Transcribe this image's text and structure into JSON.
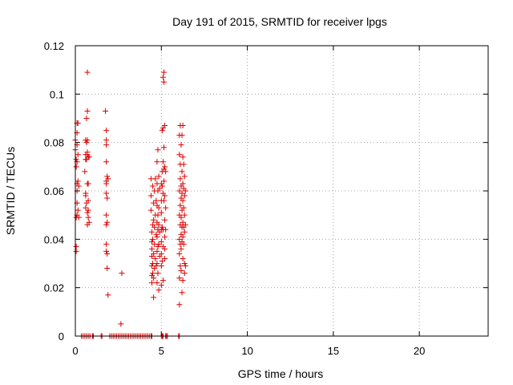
{
  "chart_data": {
    "type": "scatter",
    "title": "Day 191 of 2015, SRMTID for receiver lpgs",
    "xlabel": "GPS time / hours",
    "ylabel": "SRMTID / TECUs",
    "xlim": [
      0,
      24
    ],
    "ylim": [
      0,
      0.12
    ],
    "xticks": [
      0,
      5,
      10,
      15,
      20
    ],
    "yticks": [
      0,
      0.02,
      0.04,
      0.06,
      0.08,
      0.1,
      0.12
    ],
    "xtick_labels": [
      "0",
      "5",
      "10",
      "15",
      "20"
    ],
    "ytick_labels": [
      "0",
      "0.02",
      "0.04",
      "0.06",
      "0.08",
      "0.1",
      "0.12"
    ],
    "grid": true,
    "grid_style": "dotted",
    "marker": "plus",
    "marker_color": "#dd0000",
    "series": [
      {
        "points": [
          [
            0.0,
            0.081
          ],
          [
            0.0,
            0.077
          ],
          [
            0.05,
            0.073
          ],
          [
            0.05,
            0.07
          ],
          [
            0.05,
            0.049
          ],
          [
            0.05,
            0.037
          ],
          [
            0.05,
            0.035
          ],
          [
            0.1,
            0.088
          ],
          [
            0.1,
            0.084
          ],
          [
            0.1,
            0.079
          ],
          [
            0.1,
            0.072
          ],
          [
            0.1,
            0.063
          ],
          [
            0.1,
            0.06
          ],
          [
            0.1,
            0.055
          ],
          [
            0.1,
            0.05
          ],
          [
            0.15,
            0.088
          ],
          [
            0.15,
            0.075
          ],
          [
            0.15,
            0.064
          ],
          [
            0.15,
            0.052
          ],
          [
            0.2,
            0.062
          ],
          [
            0.2,
            0.049
          ],
          [
            0.55,
            0.068
          ],
          [
            0.6,
            0.081
          ],
          [
            0.6,
            0.075
          ],
          [
            0.6,
            0.073
          ],
          [
            0.6,
            0.059
          ],
          [
            0.6,
            0.058
          ],
          [
            0.6,
            0.053
          ],
          [
            0.65,
            0.09
          ],
          [
            0.65,
            0.08
          ],
          [
            0.65,
            0.073
          ],
          [
            0.65,
            0.055
          ],
          [
            0.7,
            0.109
          ],
          [
            0.7,
            0.093
          ],
          [
            0.7,
            0.081
          ],
          [
            0.7,
            0.076
          ],
          [
            0.7,
            0.075
          ],
          [
            0.7,
            0.063
          ],
          [
            0.7,
            0.051
          ],
          [
            0.7,
            0.046
          ],
          [
            0.75,
            0.074
          ],
          [
            0.75,
            0.063
          ],
          [
            0.75,
            0.056
          ],
          [
            0.75,
            0.052
          ],
          [
            0.75,
            0.049
          ],
          [
            0.8,
            0.074
          ],
          [
            0.8,
            0.047
          ],
          [
            1.75,
            0.093
          ],
          [
            1.8,
            0.085
          ],
          [
            1.8,
            0.081
          ],
          [
            1.8,
            0.079
          ],
          [
            1.8,
            0.072
          ],
          [
            1.8,
            0.064
          ],
          [
            1.8,
            0.063
          ],
          [
            1.8,
            0.059
          ],
          [
            1.8,
            0.05
          ],
          [
            1.8,
            0.046
          ],
          [
            1.8,
            0.038
          ],
          [
            1.8,
            0.035
          ],
          [
            1.85,
            0.066
          ],
          [
            1.85,
            0.057
          ],
          [
            1.85,
            0.047
          ],
          [
            1.85,
            0.034
          ],
          [
            1.85,
            0.028
          ],
          [
            1.9,
            0.065
          ],
          [
            1.9,
            0.017
          ],
          [
            2.7,
            0.026
          ],
          [
            2.65,
            0.005
          ],
          [
            4.4,
            0.065
          ],
          [
            4.4,
            0.058
          ],
          [
            4.4,
            0.052
          ],
          [
            4.45,
            0.043
          ],
          [
            4.45,
            0.039
          ],
          [
            4.45,
            0.036
          ],
          [
            4.45,
            0.033
          ],
          [
            4.45,
            0.029
          ],
          [
            4.45,
            0.025
          ],
          [
            4.45,
            0.022
          ],
          [
            4.5,
            0.062
          ],
          [
            4.5,
            0.046
          ],
          [
            4.5,
            0.04
          ],
          [
            4.5,
            0.03
          ],
          [
            4.5,
            0.026
          ],
          [
            4.55,
            0.055
          ],
          [
            4.55,
            0.048
          ],
          [
            4.55,
            0.034
          ],
          [
            4.55,
            0.024
          ],
          [
            4.55,
            0.016
          ],
          [
            4.6,
            0.06
          ],
          [
            4.6,
            0.045
          ],
          [
            4.6,
            0.038
          ],
          [
            4.6,
            0.028
          ],
          [
            4.65,
            0.065
          ],
          [
            4.65,
            0.05
          ],
          [
            4.65,
            0.032
          ],
          [
            4.7,
            0.056
          ],
          [
            4.7,
            0.042
          ],
          [
            4.7,
            0.029
          ],
          [
            4.75,
            0.072
          ],
          [
            4.75,
            0.063
          ],
          [
            4.75,
            0.054
          ],
          [
            4.75,
            0.047
          ],
          [
            4.75,
            0.041
          ],
          [
            4.75,
            0.035
          ],
          [
            4.75,
            0.03
          ],
          [
            4.75,
            0.022
          ],
          [
            4.8,
            0.077
          ],
          [
            4.8,
            0.06
          ],
          [
            4.8,
            0.05
          ],
          [
            4.8,
            0.044
          ],
          [
            4.8,
            0.037
          ],
          [
            4.8,
            0.026
          ],
          [
            4.85,
            0.066
          ],
          [
            4.85,
            0.053
          ],
          [
            4.85,
            0.046
          ],
          [
            4.85,
            0.038
          ],
          [
            4.85,
            0.019
          ],
          [
            4.9,
            0.061
          ],
          [
            4.9,
            0.043
          ],
          [
            4.9,
            0.033
          ],
          [
            5.0,
            0.063
          ],
          [
            5.0,
            0.056
          ],
          [
            5.0,
            0.051
          ],
          [
            5.0,
            0.044
          ],
          [
            5.0,
            0.039
          ],
          [
            5.0,
            0.034
          ],
          [
            5.0,
            0.029
          ],
          [
            5.0,
            0.021
          ],
          [
            5.05,
            0.085
          ],
          [
            5.05,
            0.068
          ],
          [
            5.05,
            0.062
          ],
          [
            5.05,
            0.045
          ],
          [
            5.05,
            0.031
          ],
          [
            5.1,
            0.107
          ],
          [
            5.1,
            0.086
          ],
          [
            5.1,
            0.072
          ],
          [
            5.1,
            0.059
          ],
          [
            5.1,
            0.044
          ],
          [
            5.1,
            0.037
          ],
          [
            5.1,
            0.023
          ],
          [
            5.15,
            0.109
          ],
          [
            5.15,
            0.105
          ],
          [
            5.15,
            0.078
          ],
          [
            5.15,
            0.069
          ],
          [
            5.15,
            0.064
          ],
          [
            5.15,
            0.056
          ],
          [
            5.2,
            0.087
          ],
          [
            5.2,
            0.07
          ],
          [
            5.2,
            0.058
          ],
          [
            5.2,
            0.048
          ],
          [
            5.2,
            0.041
          ],
          [
            5.2,
            0.036
          ],
          [
            5.2,
            0.032
          ],
          [
            5.25,
            0.068
          ],
          [
            5.25,
            0.053
          ],
          [
            5.25,
            0.044
          ],
          [
            6.05,
            0.083
          ],
          [
            6.05,
            0.075
          ],
          [
            6.05,
            0.06
          ],
          [
            6.05,
            0.05
          ],
          [
            6.05,
            0.04
          ],
          [
            6.05,
            0.034
          ],
          [
            6.05,
            0.024
          ],
          [
            6.05,
            0.013
          ],
          [
            6.1,
            0.087
          ],
          [
            6.1,
            0.071
          ],
          [
            6.1,
            0.065
          ],
          [
            6.1,
            0.054
          ],
          [
            6.1,
            0.046
          ],
          [
            6.1,
            0.038
          ],
          [
            6.1,
            0.029
          ],
          [
            6.15,
            0.079
          ],
          [
            6.15,
            0.062
          ],
          [
            6.15,
            0.057
          ],
          [
            6.15,
            0.049
          ],
          [
            6.15,
            0.042
          ],
          [
            6.15,
            0.036
          ],
          [
            6.15,
            0.027
          ],
          [
            6.2,
            0.083
          ],
          [
            6.2,
            0.068
          ],
          [
            6.2,
            0.059
          ],
          [
            6.2,
            0.052
          ],
          [
            6.2,
            0.045
          ],
          [
            6.2,
            0.039
          ],
          [
            6.2,
            0.018
          ],
          [
            6.25,
            0.087
          ],
          [
            6.25,
            0.074
          ],
          [
            6.25,
            0.063
          ],
          [
            6.25,
            0.056
          ],
          [
            6.25,
            0.047
          ],
          [
            6.25,
            0.041
          ],
          [
            6.25,
            0.032
          ],
          [
            6.25,
            0.023
          ],
          [
            6.3,
            0.071
          ],
          [
            6.3,
            0.061
          ],
          [
            6.3,
            0.053
          ],
          [
            6.3,
            0.045
          ],
          [
            6.3,
            0.038
          ],
          [
            6.35,
            0.066
          ],
          [
            6.35,
            0.058
          ],
          [
            6.35,
            0.05
          ],
          [
            6.35,
            0.043
          ],
          [
            6.35,
            0.03
          ],
          [
            6.35,
            0.026
          ],
          [
            6.4,
            0.06
          ],
          [
            6.4,
            0.046
          ],
          [
            6.4,
            0.029
          ]
        ],
        "zero_points_x": [
          0.35,
          0.45,
          0.55,
          0.65,
          0.75,
          0.85,
          1.0,
          1.05,
          1.5,
          1.55,
          2.0,
          2.1,
          2.2,
          2.3,
          2.4,
          2.5,
          2.6,
          2.7,
          2.8,
          2.9,
          3.0,
          3.1,
          3.2,
          3.3,
          3.4,
          3.5,
          3.6,
          3.7,
          3.8,
          3.9,
          4.0,
          4.1,
          4.2,
          4.3,
          4.4,
          4.45,
          5.0,
          5.05,
          5.1,
          5.25,
          5.3,
          5.35,
          6.0,
          6.05
        ]
      }
    ]
  }
}
